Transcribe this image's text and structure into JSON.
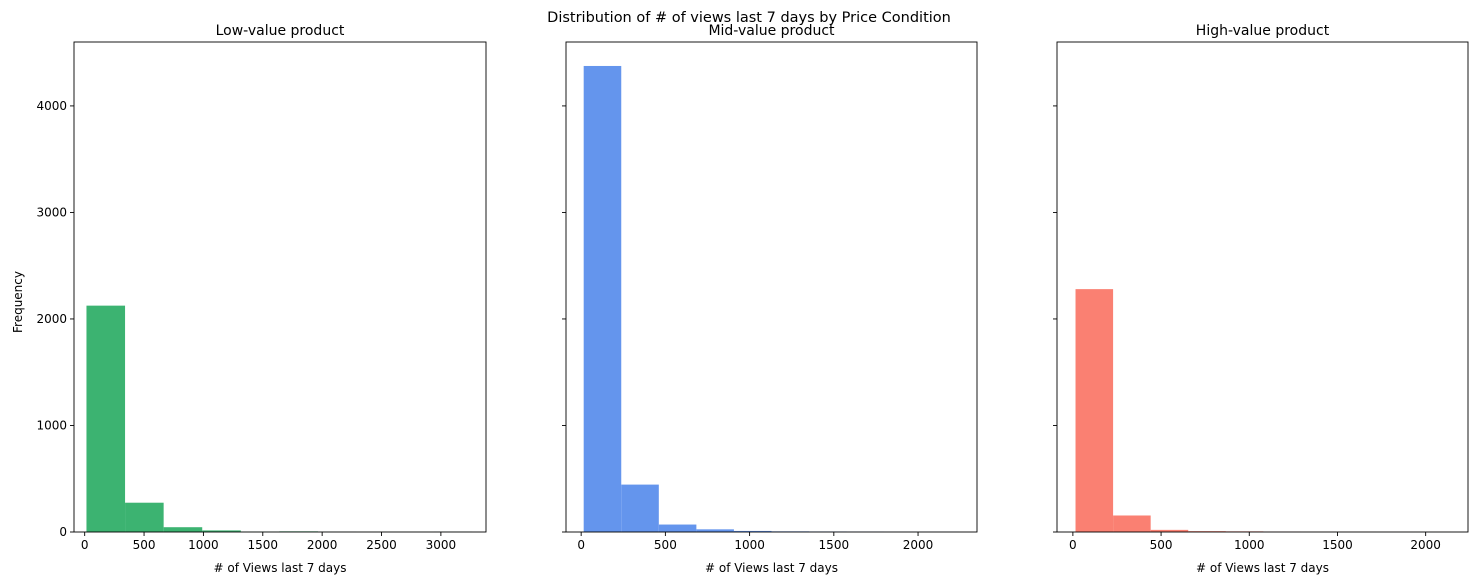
{
  "figure": {
    "title": "Distribution of # of views last 7 days by Price Condition",
    "shared_ylabel": "Frequency"
  },
  "chart_data": [
    {
      "type": "bar",
      "subtype": "histogram",
      "title": "Low-value product",
      "xlabel": "# of Views last 7 days",
      "ylabel": "Frequency",
      "color": "#3cb371",
      "xlim": [
        -90,
        3380
      ],
      "ylim": [
        0,
        4600
      ],
      "xticks": [
        0,
        500,
        1000,
        1500,
        2000,
        2500,
        3000
      ],
      "yticks": [
        0,
        1000,
        2000,
        3000,
        4000
      ],
      "bins": [
        {
          "x0": 15,
          "x1": 340,
          "count": 2125
        },
        {
          "x0": 340,
          "x1": 665,
          "count": 275
        },
        {
          "x0": 665,
          "x1": 990,
          "count": 45
        },
        {
          "x0": 990,
          "x1": 1315,
          "count": 15
        },
        {
          "x0": 1315,
          "x1": 1640,
          "count": 3
        },
        {
          "x0": 1640,
          "x1": 1965,
          "count": 6
        },
        {
          "x0": 1965,
          "x1": 2290,
          "count": 2
        },
        {
          "x0": 2290,
          "x1": 2615,
          "count": 1
        },
        {
          "x0": 2615,
          "x1": 2940,
          "count": 1
        },
        {
          "x0": 2940,
          "x1": 3265,
          "count": 2
        }
      ]
    },
    {
      "type": "bar",
      "subtype": "histogram",
      "title": "Mid-value product",
      "xlabel": "# of Views last 7 days",
      "color": "#6495ed",
      "xlim": [
        -90,
        2350
      ],
      "ylim": [
        0,
        4600
      ],
      "xticks": [
        0,
        500,
        1000,
        1500,
        2000
      ],
      "yticks": [
        0,
        1000,
        2000,
        3000,
        4000
      ],
      "bins": [
        {
          "x0": 15,
          "x1": 238,
          "count": 4375
        },
        {
          "x0": 238,
          "x1": 461,
          "count": 445
        },
        {
          "x0": 461,
          "x1": 684,
          "count": 70
        },
        {
          "x0": 684,
          "x1": 907,
          "count": 25
        },
        {
          "x0": 907,
          "x1": 1130,
          "count": 10
        },
        {
          "x0": 1130,
          "x1": 1353,
          "count": 6
        },
        {
          "x0": 1353,
          "x1": 1576,
          "count": 5
        },
        {
          "x0": 1576,
          "x1": 1799,
          "count": 4
        },
        {
          "x0": 1799,
          "x1": 2022,
          "count": 2
        },
        {
          "x0": 2022,
          "x1": 2245,
          "count": 2
        }
      ]
    },
    {
      "type": "bar",
      "subtype": "histogram",
      "title": "High-value product",
      "xlabel": "# of Views last 7 days",
      "color": "#fa8072",
      "xlim": [
        -90,
        2240
      ],
      "ylim": [
        0,
        4600
      ],
      "xticks": [
        0,
        500,
        1000,
        1500,
        2000
      ],
      "yticks": [
        0,
        1000,
        2000,
        3000,
        4000
      ],
      "bins": [
        {
          "x0": 15,
          "x1": 228,
          "count": 2280
        },
        {
          "x0": 228,
          "x1": 441,
          "count": 155
        },
        {
          "x0": 441,
          "x1": 654,
          "count": 20
        },
        {
          "x0": 654,
          "x1": 867,
          "count": 8
        },
        {
          "x0": 867,
          "x1": 1080,
          "count": 6
        },
        {
          "x0": 1080,
          "x1": 1293,
          "count": 3
        },
        {
          "x0": 1293,
          "x1": 1506,
          "count": 2
        },
        {
          "x0": 1506,
          "x1": 1719,
          "count": 2
        },
        {
          "x0": 1719,
          "x1": 1932,
          "count": 1
        },
        {
          "x0": 1932,
          "x1": 2145,
          "count": 1
        }
      ]
    }
  ]
}
